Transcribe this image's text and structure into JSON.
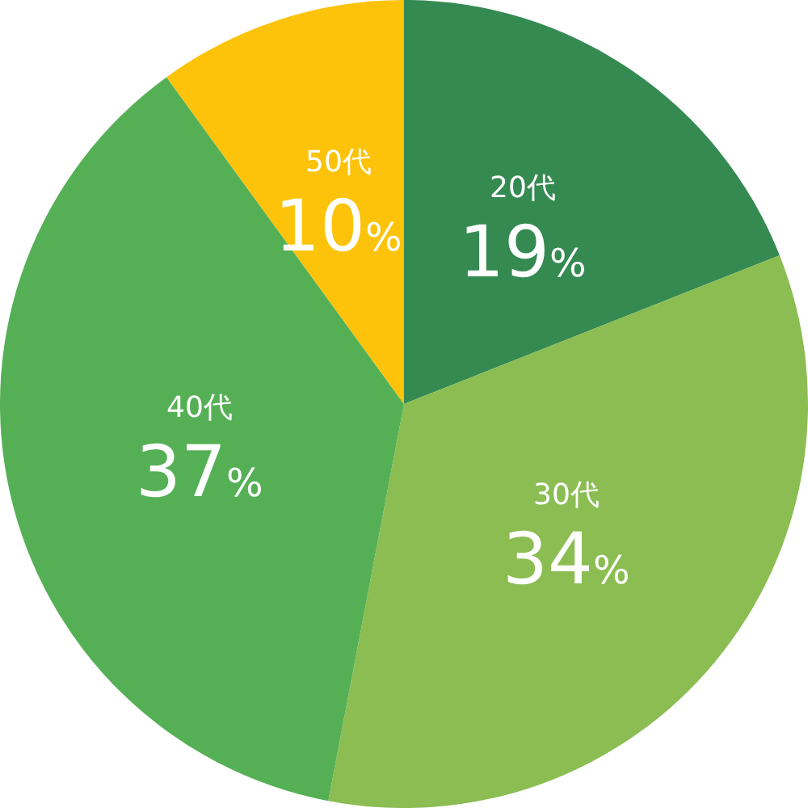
{
  "chart_data": {
    "type": "pie",
    "categories": [
      "20代",
      "30代",
      "40代",
      "50代"
    ],
    "values": [
      19,
      34,
      37,
      10
    ],
    "value_labels": [
      "19%",
      "34%",
      "37%",
      "10%"
    ],
    "colors": [
      "#358a52",
      "#8bbd52",
      "#55b055",
      "#fcc30a"
    ],
    "legend": false
  }
}
